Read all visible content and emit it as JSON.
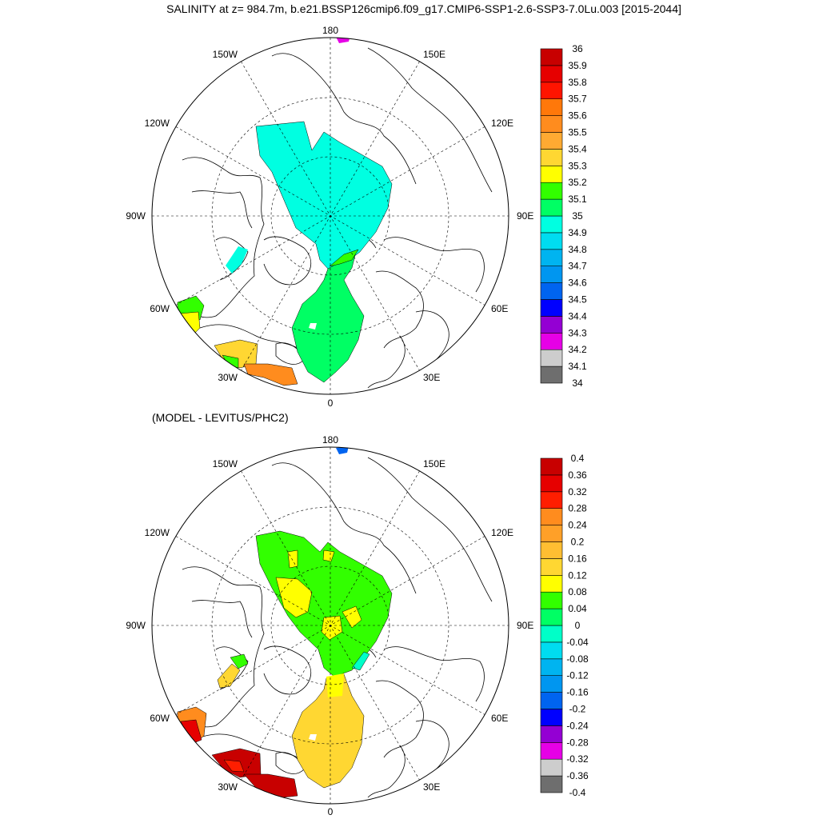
{
  "title": "SALINITY at z= 984.7m, b.e21.BSSP126cmip6.f09_g17.CMIP6-SSP1-2.6-SSP3-7.0Lu.003 [2015-2044]",
  "diff_title": "(MODEL - LEVITUS/PHC2)",
  "longitude_labels": {
    "top": "180",
    "bottom": "0",
    "left": "90W",
    "right": "90E",
    "upper_left": "150W",
    "upper_right": "150E",
    "mid_upper_left": "120W",
    "mid_upper_right": "120E",
    "mid_lower_left": "60W",
    "mid_lower_right": "60E",
    "lower_left": "30W",
    "lower_right": "30E"
  },
  "colors": {
    "salinity_levels": [
      "#6e6e6e",
      "#cdcdcd",
      "#e600e6",
      "#9400d3",
      "#0000ff",
      "#0064f0",
      "#0096f0",
      "#00b4f0",
      "#00dcf0",
      "#00ffe1",
      "#00ff64",
      "#32ff00",
      "#ffff00",
      "#ffd732",
      "#ffaa32",
      "#ff8c1e",
      "#ff780a",
      "#ff1400",
      "#e60000",
      "#c80000"
    ],
    "difference_levels": [
      "#6e6e6e",
      "#cdcdcd",
      "#e600e6",
      "#9400d3",
      "#0000ff",
      "#0064f0",
      "#0096f0",
      "#00b4f0",
      "#00dcf0",
      "#00ffc8",
      "#00ff64",
      "#32ff00",
      "#ffff00",
      "#ffd732",
      "#ffbe32",
      "#ffa028",
      "#ff8c1e",
      "#ff1e00",
      "#e60000",
      "#c80000"
    ]
  },
  "salinity_colorbar": {
    "labels": [
      "36",
      "35.9",
      "35.8",
      "35.7",
      "35.6",
      "35.5",
      "35.4",
      "35.3",
      "35.2",
      "35.1",
      "35",
      "34.9",
      "34.8",
      "34.7",
      "34.6",
      "34.5",
      "34.4",
      "34.3",
      "34.2",
      "34.1",
      "34"
    ]
  },
  "difference_colorbar": {
    "labels": [
      "0.4",
      "0.36",
      "0.32",
      "0.28",
      "0.24",
      "0.2",
      "0.16",
      "0.12",
      "0.08",
      "0.04",
      "0",
      "-0.04",
      "-0.08",
      "-0.12",
      "-0.16",
      "-0.2",
      "-0.24",
      "-0.28",
      "-0.32",
      "-0.36",
      "-0.4"
    ]
  }
}
